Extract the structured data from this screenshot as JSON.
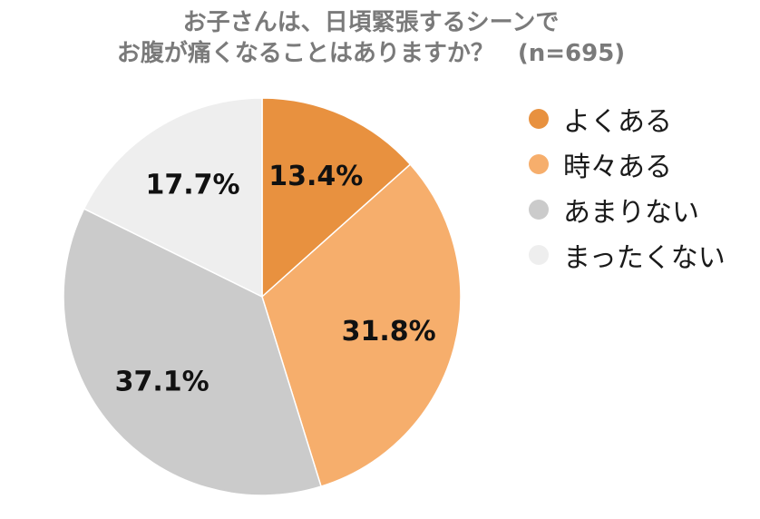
{
  "title": {
    "line1": "お子さんは、日頃緊張するシーンで",
    "line2": "お腹が痛くなることはありますか？　(n=695)"
  },
  "chart_data": {
    "type": "pie",
    "title": "お子さんは、日頃緊張するシーンでお腹が痛くなることはありますか？　(n=695)",
    "categories": [
      "よくある",
      "時々ある",
      "あまりない",
      "まったくない"
    ],
    "values": [
      13.4,
      31.8,
      37.1,
      17.7
    ],
    "labels": [
      "13.4%",
      "31.8%",
      "37.1%",
      "17.7%"
    ],
    "colors": [
      "#E8913F",
      "#F6AE6C",
      "#CBCBCB",
      "#EEEEEE"
    ],
    "start": "12 o'clock",
    "direction": "clockwise",
    "legend_position": "right"
  }
}
